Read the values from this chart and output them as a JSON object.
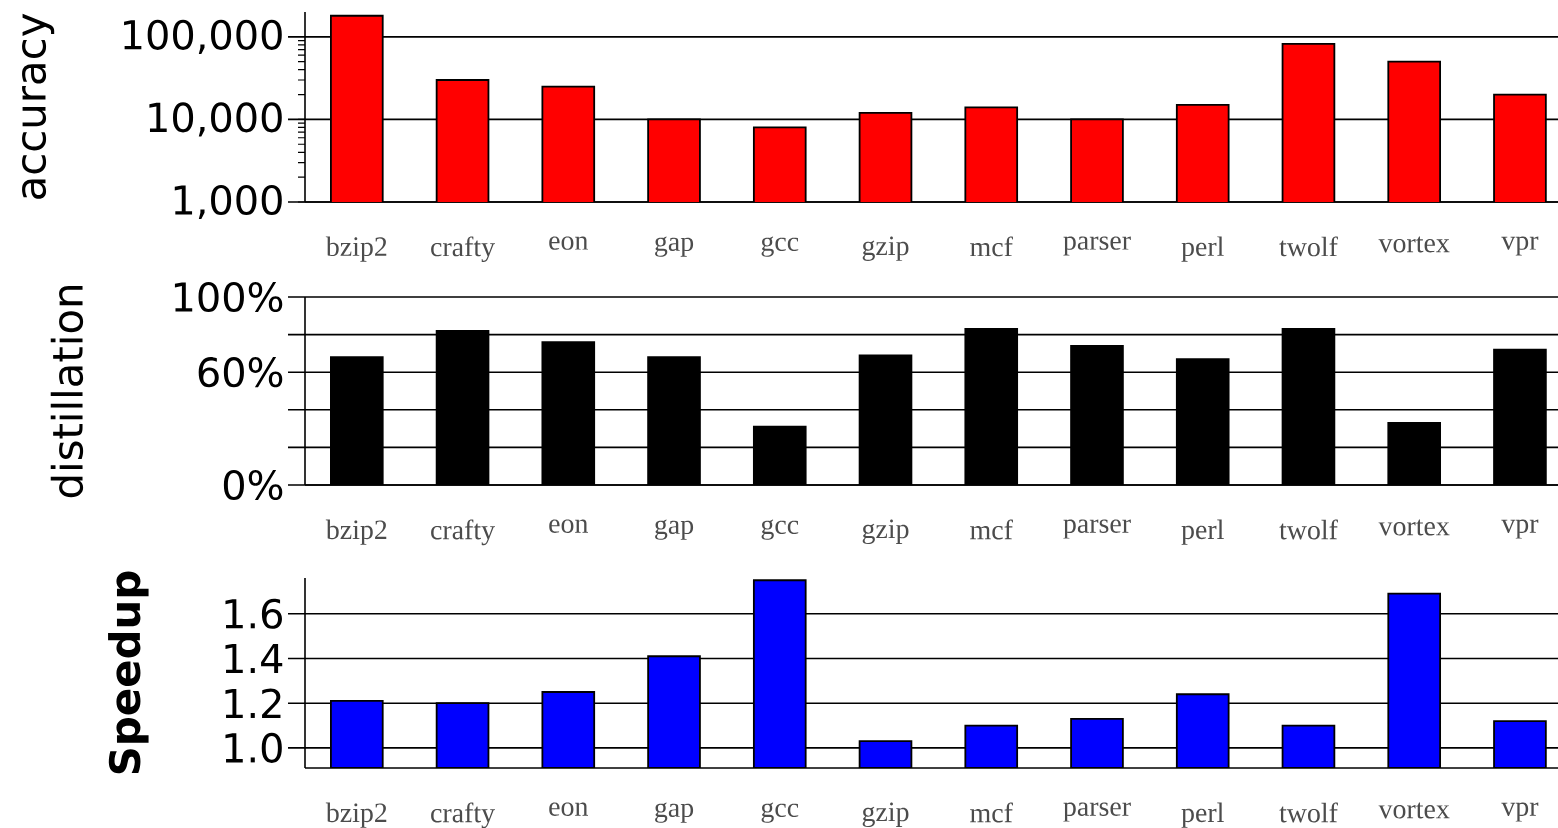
{
  "chart_data": [
    {
      "type": "bar",
      "ylabel": "accuracy",
      "categories": [
        "bzip2",
        "crafty",
        "eon",
        "gap",
        "gcc",
        "gzip",
        "mcf",
        "parser",
        "perl",
        "twolf",
        "vortex",
        "vpr"
      ],
      "values": [
        180000,
        30000,
        25000,
        10000,
        8000,
        12000,
        14000,
        10000,
        15000,
        82000,
        50000,
        20000
      ],
      "color": "#ff0000",
      "log": true,
      "ylim": [
        1000,
        200000
      ],
      "yticks": [
        {
          "value": 1000,
          "label": "1,000"
        },
        {
          "value": 10000,
          "label": "10,000"
        },
        {
          "value": 100000,
          "label": "100,000"
        }
      ],
      "grid": "y"
    },
    {
      "type": "bar",
      "ylabel": "distillation",
      "categories": [
        "bzip2",
        "crafty",
        "eon",
        "gap",
        "gcc",
        "gzip",
        "mcf",
        "parser",
        "perl",
        "twolf",
        "vortex",
        "vpr"
      ],
      "values": [
        68,
        82,
        76,
        68,
        31,
        69,
        83,
        74,
        67,
        83,
        33,
        72
      ],
      "color": "#000000",
      "ylim": [
        0,
        100
      ],
      "yticks": [
        {
          "value": 0,
          "label": "0%"
        },
        {
          "value": 20,
          "label": null
        },
        {
          "value": 40,
          "label": null
        },
        {
          "value": 60,
          "label": "60%"
        },
        {
          "value": 80,
          "label": null
        },
        {
          "value": 100,
          "label": "100%"
        }
      ],
      "grid": "y"
    },
    {
      "type": "bar",
      "ylabel": "**Speedup**",
      "categories": [
        "bzip2",
        "crafty",
        "eon",
        "gap",
        "gcc",
        "gzip",
        "mcf",
        "parser",
        "perl",
        "twolf",
        "vortex",
        "vpr"
      ],
      "values": [
        1.21,
        1.2,
        1.25,
        1.41,
        1.75,
        1.03,
        1.1,
        1.13,
        1.24,
        1.1,
        1.69,
        1.12
      ],
      "color": "#0000ff",
      "ylim": [
        0.91,
        1.76
      ],
      "yticks": [
        {
          "value": 1.0,
          "label": "1.0"
        },
        {
          "value": 1.2,
          "label": "1.2"
        },
        {
          "value": 1.4,
          "label": "1.4"
        },
        {
          "value": 1.6,
          "label": "1.6"
        }
      ],
      "grid": "y"
    }
  ]
}
